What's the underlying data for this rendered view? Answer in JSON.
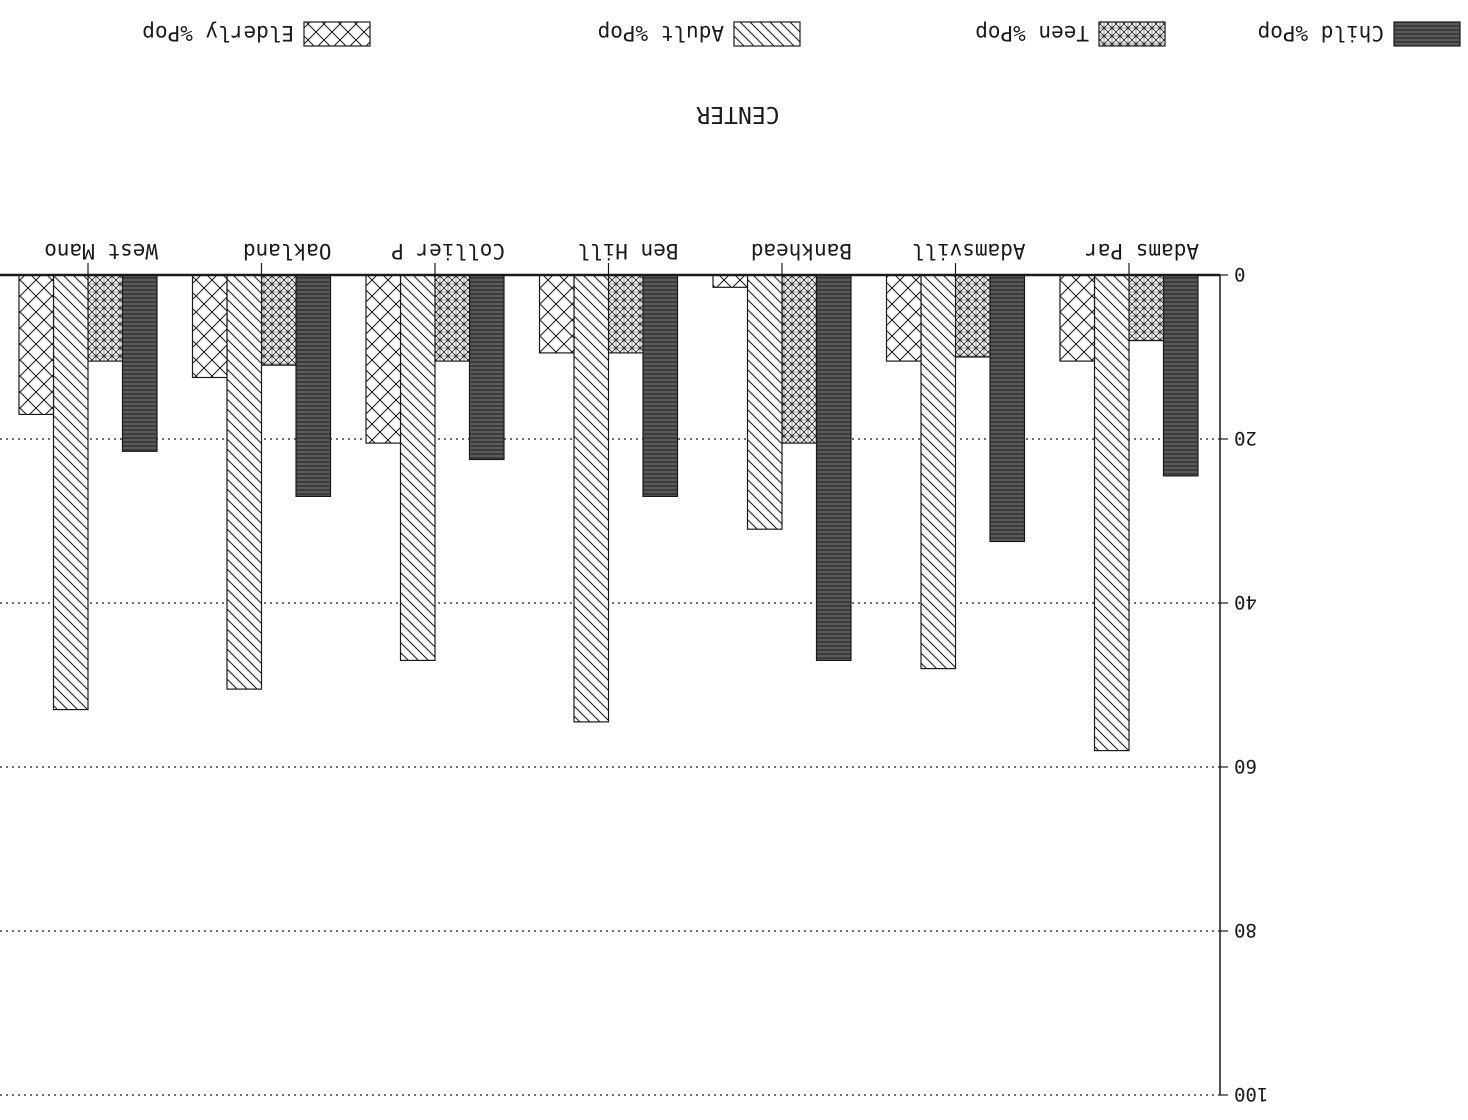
{
  "chart_data": {
    "type": "bar",
    "orientation": "rotated-180",
    "title": "CENTER",
    "categories": [
      "Adams Par",
      "Adamsvill",
      "Bankhead",
      "Ben Hill",
      "Collier P",
      "Oakland",
      "West Mano"
    ],
    "series": [
      {
        "name": "Child %Pop",
        "pattern": "solid-dark",
        "values": [
          24.5,
          32.5,
          47,
          27,
          22.5,
          27,
          21.5
        ]
      },
      {
        "name": "Teen %Pop",
        "pattern": "crosshatch",
        "values": [
          8,
          10,
          20.5,
          9.5,
          10.5,
          11,
          10.5
        ]
      },
      {
        "name": "Adult %Pop",
        "pattern": "diagonal",
        "values": [
          58,
          48,
          31,
          54.5,
          47,
          50.5,
          53
        ]
      },
      {
        "name": "Elderly %Pop",
        "pattern": "x-hatch",
        "values": [
          10.5,
          10.5,
          1.5,
          9.5,
          20.5,
          12.5,
          17
        ]
      }
    ],
    "ylim": [
      0,
      100
    ],
    "yticks": [
      "0",
      "20",
      "40",
      "60",
      "80",
      "100"
    ],
    "grid": true,
    "legend_position": "top",
    "colors": {
      "ink": "#1a1a1a",
      "solid": "#4a4a4a"
    }
  }
}
